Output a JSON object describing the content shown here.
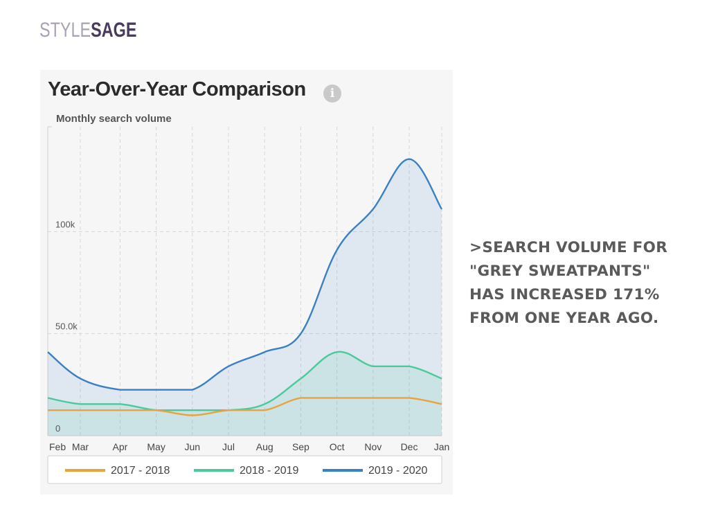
{
  "logo": {
    "part1": "STYLE",
    "part2": "SAGE"
  },
  "card": {
    "title": "Year-Over-Year Comparison",
    "info_icon": "info-icon"
  },
  "tagline": {
    "text": ">SEARCH VOLUME FOR \"GREY SWEATPANTS\" HAS INCREASED 171% FROM ONE YEAR AGO."
  },
  "chart_data": {
    "type": "area",
    "title": "Year-Over-Year Comparison",
    "ylabel": "Monthly search volume",
    "xlabel": "",
    "categories": [
      "Feb",
      "Mar",
      "Apr",
      "May",
      "Jun",
      "Jul",
      "Aug",
      "Sep",
      "Oct",
      "Nov",
      "Dec",
      "Jan"
    ],
    "x": [
      0,
      0.9,
      2,
      3,
      4,
      5,
      6,
      7,
      8,
      9,
      10,
      10.9
    ],
    "ylim": [
      0,
      150000
    ],
    "y_ticks": [
      {
        "value": 0,
        "label": "0"
      },
      {
        "value": 50000,
        "label": "50.0k"
      },
      {
        "value": 100000,
        "label": "100k"
      }
    ],
    "grid": true,
    "legend": "bottom",
    "series": [
      {
        "name": "2017 - 2018",
        "color": "#e8a33d",
        "fill": false,
        "values": [
          12500,
          12500,
          12500,
          12500,
          10000,
          12500,
          12500,
          18500,
          18500,
          18500,
          18500,
          15500
        ]
      },
      {
        "name": "2018 - 2019",
        "color": "#4cc99a",
        "fill": true,
        "values": [
          18500,
          15500,
          15500,
          12500,
          12500,
          12500,
          15500,
          28000,
          41000,
          34000,
          34000,
          28000
        ]
      },
      {
        "name": "2019 - 2020",
        "color": "#3b7fc4",
        "fill": true,
        "values": [
          41000,
          28000,
          22500,
          22500,
          22500,
          34000,
          41000,
          50000,
          91000,
          111000,
          135500,
          111000
        ]
      }
    ]
  }
}
